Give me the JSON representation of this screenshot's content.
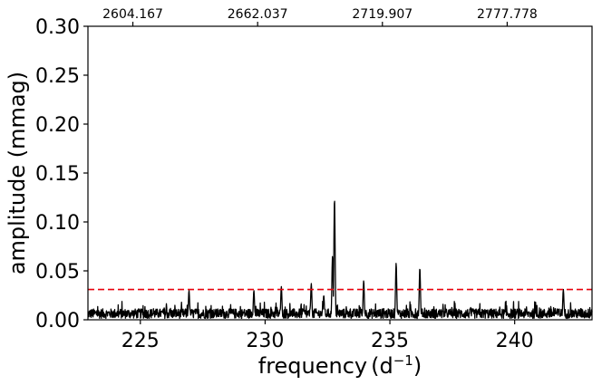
{
  "chart_data": {
    "type": "line",
    "xlabel": "frequency",
    "xlabel_unit_base": "d",
    "xlabel_unit_exp": "−1",
    "ylabel": "amplitude (mmag)",
    "xlim": [
      222.9,
      243.1
    ],
    "ylim": [
      0.0,
      0.3
    ],
    "x_ticks": [
      225,
      230,
      235,
      240
    ],
    "y_ticks": [
      "0.00",
      "0.05",
      "0.10",
      "0.15",
      "0.20",
      "0.25",
      "0.30"
    ],
    "top_axis": {
      "ticks": [
        {
          "x": 224.7,
          "label": "2604.167"
        },
        {
          "x": 229.7,
          "label": "2662.037"
        },
        {
          "x": 234.7,
          "label": "2719.907"
        },
        {
          "x": 239.7,
          "label": "2777.778"
        }
      ]
    },
    "threshold": {
      "y": 0.031,
      "color": "#e8000b",
      "style": "dashed"
    },
    "series": [
      {
        "color": "#000000",
        "noise_level": 0.009,
        "peaks": [
          {
            "x": 226.95,
            "y": 0.03
          },
          {
            "x": 229.55,
            "y": 0.03
          },
          {
            "x": 230.65,
            "y": 0.034
          },
          {
            "x": 231.85,
            "y": 0.037
          },
          {
            "x": 232.35,
            "y": 0.025
          },
          {
            "x": 232.7,
            "y": 0.065
          },
          {
            "x": 232.78,
            "y": 0.124
          },
          {
            "x": 233.95,
            "y": 0.04
          },
          {
            "x": 235.25,
            "y": 0.058
          },
          {
            "x": 236.2,
            "y": 0.053
          },
          {
            "x": 241.95,
            "y": 0.031
          }
        ]
      }
    ]
  }
}
